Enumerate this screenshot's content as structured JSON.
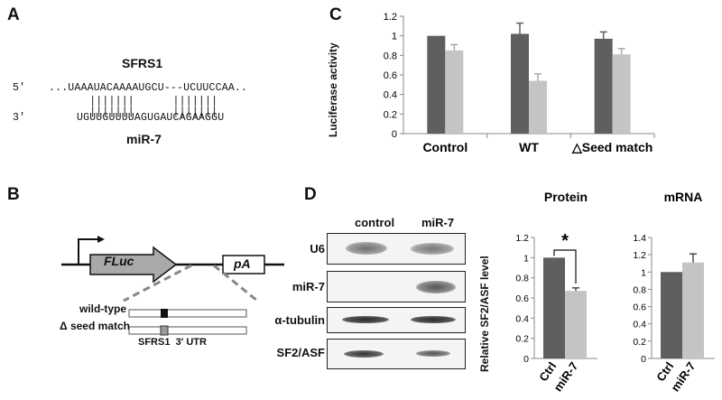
{
  "panels": {
    "a": "A",
    "b": "B",
    "c": "C",
    "d": "D"
  },
  "panel_a": {
    "gene_label": "SFRS1",
    "five_prime": "5'",
    "three_prime": "3'",
    "target_seq": "...UAAAUACAAAAUGCU---UCUUCCAA..",
    "pairing": "  |||||||      |||||||",
    "mirna_seq": "UGUUGUUUUAGUGAUCAGAAGGU",
    "mirna_label": "miR-7"
  },
  "panel_b": {
    "fluc_label": "FLuc",
    "pa_label": "pA",
    "wildtype_label": "wild-type",
    "deltaseed_label": "Δ seed match",
    "utr_label": "SFRS1  3' UTR"
  },
  "panel_c": {
    "chart_data": {
      "type": "bar",
      "ylabel": "Luciferase activity",
      "ylim": [
        0,
        1.2
      ],
      "yticks": [
        0,
        0.2,
        0.4,
        0.6,
        0.8,
        1,
        1.2
      ],
      "categories": [
        "Control",
        "WT",
        "△Seed match"
      ],
      "series": [
        {
          "values": [
            1.0,
            1.02,
            0.97
          ],
          "errors": [
            0.0,
            0.11,
            0.07
          ],
          "color": "#5f5f5f"
        },
        {
          "values": [
            0.85,
            0.54,
            0.81
          ],
          "errors": [
            0.06,
            0.07,
            0.06
          ],
          "color": "#c4c4c4"
        }
      ]
    }
  },
  "panel_d_blot": {
    "lanes": [
      "control",
      "miR-7"
    ],
    "rows": [
      "U6",
      "miR-7",
      "α-tubulin",
      "SF2/ASF"
    ]
  },
  "panel_d_protein": {
    "chart_data": {
      "type": "bar",
      "title": "Protein",
      "ylabel": "Relative SF2/ASF level",
      "ylim": [
        0,
        1.2
      ],
      "yticks": [
        0,
        0.2,
        0.4,
        0.6,
        0.8,
        1,
        1.2
      ],
      "categories": [
        "Ctrl",
        "miR-7"
      ],
      "values": [
        1.0,
        0.67
      ],
      "errors": [
        0.0,
        0.03
      ],
      "colors": [
        "#5f5f5f",
        "#c4c4c4"
      ],
      "annotation": "*"
    }
  },
  "panel_d_mrna": {
    "chart_data": {
      "type": "bar",
      "title": "mRNA",
      "ylim": [
        0,
        1.4
      ],
      "yticks": [
        0,
        0.2,
        0.4,
        0.6,
        0.8,
        1,
        1.2,
        1.4
      ],
      "categories": [
        "Ctrl",
        "miR-7"
      ],
      "values": [
        1.0,
        1.11
      ],
      "errors": [
        0.0,
        0.1
      ],
      "colors": [
        "#5f5f5f",
        "#c4c4c4"
      ]
    }
  }
}
